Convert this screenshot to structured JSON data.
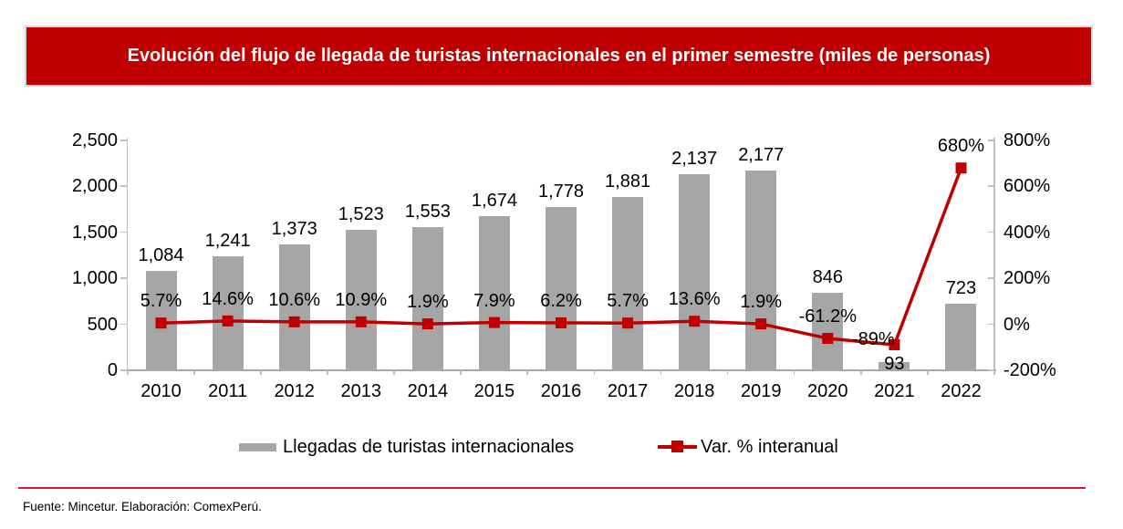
{
  "banner": {
    "title": "Evolución del flujo de llegada de turistas internacionales en el primer semestre  (miles de personas)",
    "bg_color": "#C00000",
    "text_color": "#FFFFFF"
  },
  "chart_data": {
    "type": "bar+line",
    "title": "Evolución del flujo de llegada de turistas internacionales en el primer semestre (miles de personas)",
    "categories": [
      "2010",
      "2011",
      "2012",
      "2013",
      "2014",
      "2015",
      "2016",
      "2017",
      "2018",
      "2019",
      "2020",
      "2021",
      "2022"
    ],
    "series": [
      {
        "name": "Llegadas de turistas internacionales",
        "type": "bar",
        "axis": "left",
        "color": "#A6A6A6",
        "values": [
          1084,
          1241,
          1373,
          1523,
          1553,
          1674,
          1778,
          1881,
          2137,
          2177,
          846,
          93,
          723
        ],
        "labels": [
          "1,084",
          "1,241",
          "1,373",
          "1,523",
          "1,553",
          "1,674",
          "1,778",
          "1,881",
          "2,137",
          "2,177",
          "846",
          "93",
          "723"
        ],
        "label_dy": [
          0,
          0,
          0,
          0,
          0,
          0,
          0,
          0,
          0,
          0,
          0,
          19,
          0
        ]
      },
      {
        "name": "Var. % interanual",
        "type": "line",
        "axis": "right",
        "color": "#C00000",
        "marker": "square",
        "values": [
          5.7,
          14.6,
          10.6,
          10.9,
          1.9,
          7.9,
          6.2,
          5.7,
          13.6,
          1.9,
          -61.2,
          -89,
          680
        ],
        "labels": [
          "5.7%",
          "14.6%",
          "10.6%",
          "10.9%",
          "1.9%",
          "7.9%",
          "6.2%",
          "5.7%",
          "13.6%",
          "1.9%",
          "-61.2%",
          "-89%",
          "680%"
        ],
        "label_dx": [
          0,
          0,
          0,
          0,
          0,
          0,
          0,
          0,
          0,
          0,
          0,
          -23,
          0
        ],
        "label_dy": [
          0,
          0,
          0,
          0,
          0,
          0,
          0,
          0,
          0,
          0,
          0,
          18,
          0
        ]
      }
    ],
    "left_axis": {
      "min": 0,
      "max": 2500,
      "step": 500,
      "tick_labels": [
        "0",
        "500",
        "1,000",
        "1,500",
        "2,000",
        "2,500"
      ]
    },
    "right_axis": {
      "min": -200,
      "max": 800,
      "step": 200,
      "tick_labels": [
        "-200%",
        "0%",
        "200%",
        "400%",
        "600%",
        "800%"
      ]
    },
    "grid": false,
    "legend_position": "bottom",
    "axis_color": "#BFBFBF"
  },
  "footer": {
    "source_text": "Fuente: Mincetur. Elaboración: ComexPerú.",
    "rule_color": "#E8112D"
  }
}
